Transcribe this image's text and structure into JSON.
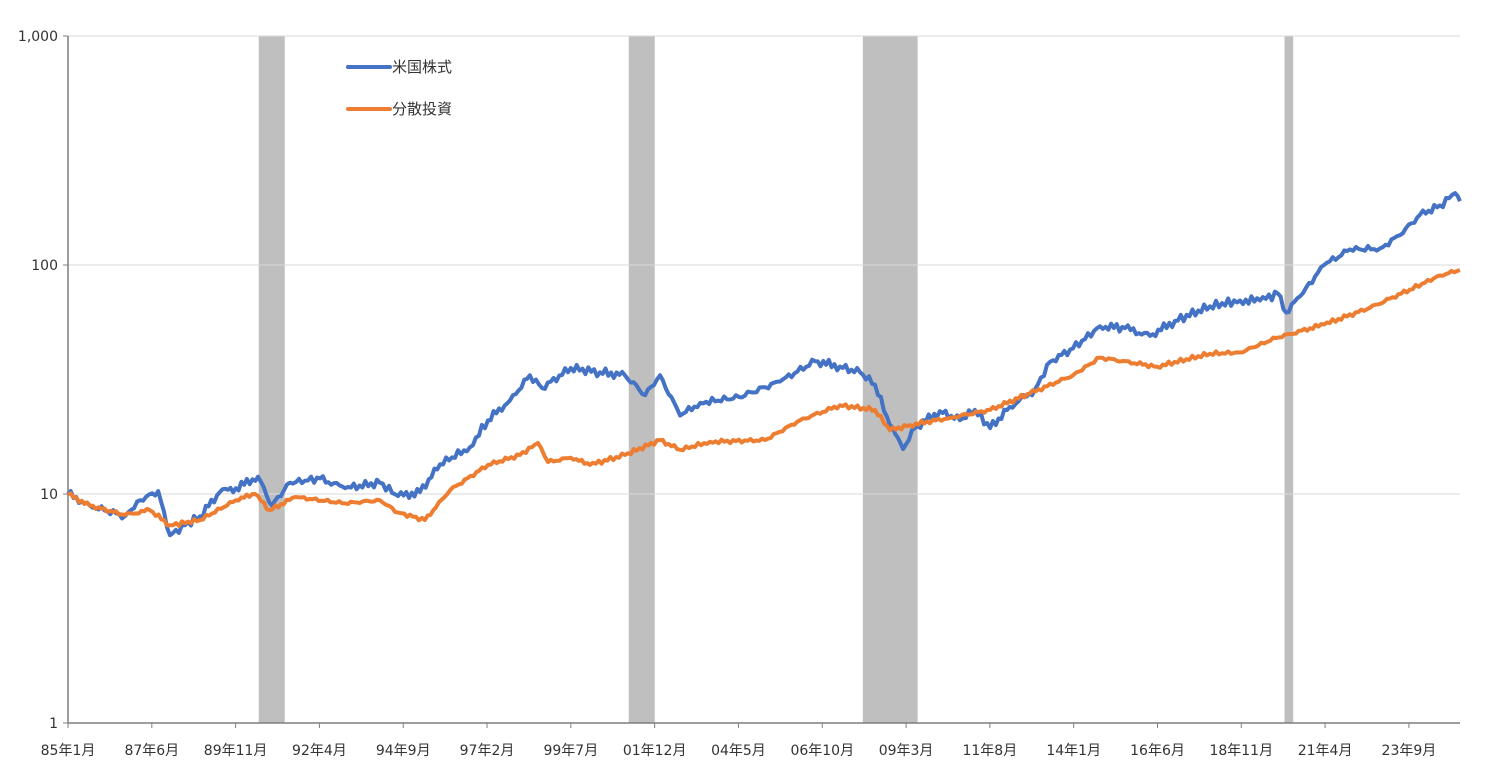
{
  "chart_data": {
    "type": "line",
    "title": "",
    "xlabel": "",
    "ylabel": "",
    "y_scale": "log",
    "ylim": [
      1,
      1000
    ],
    "xlim": [
      1985.0,
      2025.14
    ],
    "grid": true,
    "legend_placement": "top-left",
    "y_ticks": [
      {
        "value": 1,
        "label": "1"
      },
      {
        "value": 10,
        "label": "10"
      },
      {
        "value": 100,
        "label": "100"
      },
      {
        "value": 1000,
        "label": "1,000"
      }
    ],
    "x_ticks": [
      {
        "value": 1985.0,
        "label": "85年1月"
      },
      {
        "value": 1987.417,
        "label": "87年6月"
      },
      {
        "value": 1989.833,
        "label": "89年11月"
      },
      {
        "value": 1992.25,
        "label": "92年4月"
      },
      {
        "value": 1994.667,
        "label": "94年9月"
      },
      {
        "value": 1997.083,
        "label": "97年2月"
      },
      {
        "value": 1999.5,
        "label": "99年7月"
      },
      {
        "value": 2001.917,
        "label": "01年12月"
      },
      {
        "value": 2004.333,
        "label": "04年5月"
      },
      {
        "value": 2006.75,
        "label": "06年10月"
      },
      {
        "value": 2009.167,
        "label": "09年3月"
      },
      {
        "value": 2011.583,
        "label": "11年8月"
      },
      {
        "value": 2014.0,
        "label": "14年1月"
      },
      {
        "value": 2016.417,
        "label": "16年6月"
      },
      {
        "value": 2018.833,
        "label": "18年11月"
      },
      {
        "value": 2021.25,
        "label": "21年4月"
      },
      {
        "value": 2023.667,
        "label": "23年9月"
      }
    ],
    "shaded_periods": [
      [
        1990.5,
        1991.25
      ],
      [
        2001.17,
        2001.92
      ],
      [
        2007.92,
        2009.5
      ],
      [
        2020.08,
        2020.33
      ]
    ],
    "shade_color": "#BFBFBF",
    "series": [
      {
        "name": "米国株式",
        "color": "#4472C4",
        "points": [
          [
            1985.0,
            10
          ],
          [
            1985.63,
            8.9
          ],
          [
            1986.64,
            8
          ],
          [
            1987.08,
            9.4
          ],
          [
            1987.6,
            10.3
          ],
          [
            1987.94,
            6.6
          ],
          [
            1988.37,
            7.3
          ],
          [
            1988.81,
            8
          ],
          [
            1989.38,
            10.2
          ],
          [
            1989.84,
            10.6
          ],
          [
            1990.48,
            11.9
          ],
          [
            1990.88,
            8.9
          ],
          [
            1991.4,
            11.2
          ],
          [
            1992.27,
            11.7
          ],
          [
            1992.99,
            10.6
          ],
          [
            1993.99,
            11.2
          ],
          [
            1994.52,
            9.8
          ],
          [
            1995.15,
            10.2
          ],
          [
            1995.73,
            13.5
          ],
          [
            1996.59,
            16
          ],
          [
            1997.11,
            21
          ],
          [
            1997.75,
            25.7
          ],
          [
            1998.32,
            33
          ],
          [
            1998.67,
            29
          ],
          [
            1999.5,
            35.5
          ],
          [
            2000.34,
            34
          ],
          [
            2001.06,
            33
          ],
          [
            2001.64,
            27
          ],
          [
            2002.07,
            33
          ],
          [
            2002.65,
            22
          ],
          [
            2003.23,
            25
          ],
          [
            2004.35,
            26.5
          ],
          [
            2005.53,
            31
          ],
          [
            2006.54,
            38
          ],
          [
            2007.26,
            36
          ],
          [
            2007.84,
            34
          ],
          [
            2008.27,
            30
          ],
          [
            2008.7,
            20
          ],
          [
            2009.08,
            15.7
          ],
          [
            2009.42,
            19.4
          ],
          [
            2010.14,
            23
          ],
          [
            2010.72,
            21
          ],
          [
            2011.15,
            23.3
          ],
          [
            2011.59,
            19.4
          ],
          [
            2012.16,
            24
          ],
          [
            2012.88,
            28.5
          ],
          [
            2013.32,
            37.8
          ],
          [
            2013.98,
            43.2
          ],
          [
            2014.76,
            54
          ],
          [
            2015.48,
            53
          ],
          [
            2016.2,
            49
          ],
          [
            2016.92,
            57
          ],
          [
            2017.93,
            66
          ],
          [
            2018.8,
            70
          ],
          [
            2019.37,
            70
          ],
          [
            2019.89,
            75
          ],
          [
            2020.12,
            62
          ],
          [
            2020.53,
            73
          ],
          [
            2021.22,
            100
          ],
          [
            2021.97,
            117
          ],
          [
            2022.83,
            118
          ],
          [
            2023.41,
            135
          ],
          [
            2023.99,
            166
          ],
          [
            2024.56,
            182
          ],
          [
            2025.0,
            206
          ],
          [
            2025.14,
            190
          ]
        ]
      },
      {
        "name": "分散投資",
        "color": "#ED7D31",
        "points": [
          [
            1985.0,
            10
          ],
          [
            1985.63,
            8.9
          ],
          [
            1986.64,
            8.1
          ],
          [
            1987.36,
            8.5
          ],
          [
            1987.94,
            7.3
          ],
          [
            1988.81,
            7.7
          ],
          [
            1989.84,
            9.4
          ],
          [
            1990.39,
            10
          ],
          [
            1990.82,
            8.5
          ],
          [
            1991.55,
            9.7
          ],
          [
            1992.99,
            9.1
          ],
          [
            1993.99,
            9.4
          ],
          [
            1994.52,
            8.3
          ],
          [
            1995.29,
            7.7
          ],
          [
            1996.02,
            10.4
          ],
          [
            1997.11,
            13.4
          ],
          [
            1998.03,
            14.8
          ],
          [
            1998.55,
            16.7
          ],
          [
            1998.84,
            13.8
          ],
          [
            1999.5,
            14.4
          ],
          [
            2000.05,
            13.4
          ],
          [
            2001.06,
            14.8
          ],
          [
            2002.07,
            17.2
          ],
          [
            2002.65,
            15.6
          ],
          [
            2003.51,
            16.9
          ],
          [
            2005.1,
            17.2
          ],
          [
            2006.11,
            21
          ],
          [
            2007.26,
            24.4
          ],
          [
            2008.27,
            23.3
          ],
          [
            2008.7,
            19
          ],
          [
            2009.28,
            20
          ],
          [
            2010.43,
            21.5
          ],
          [
            2011.59,
            23.3
          ],
          [
            2012.74,
            27.5
          ],
          [
            2013.98,
            33
          ],
          [
            2014.76,
            39.4
          ],
          [
            2016.4,
            36
          ],
          [
            2017.93,
            41
          ],
          [
            2018.8,
            41.5
          ],
          [
            2019.84,
            48
          ],
          [
            2021.22,
            55
          ],
          [
            2022.54,
            65
          ],
          [
            2023.69,
            78
          ],
          [
            2024.56,
            90
          ],
          [
            2025.14,
            95
          ]
        ]
      }
    ]
  }
}
